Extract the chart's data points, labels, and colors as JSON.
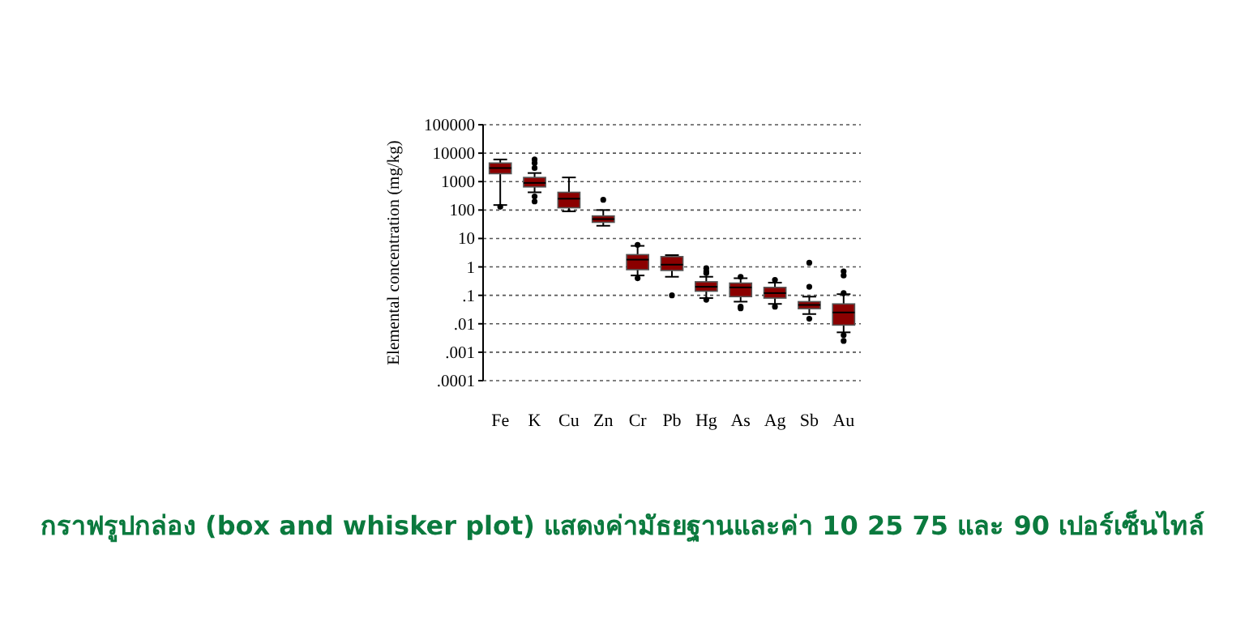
{
  "chart_data": {
    "type": "box",
    "title": "กราฟรูปกล่อง (box and whisker plot) แสดงค่ามัธยฐานและค่า 10 25 75 และ 90 เปอร์เซ็นไทล์",
    "ylabel": "Elemental concentration (mg/kg)",
    "categories": [
      "Fe",
      "K",
      "Cu",
      "Zn",
      "Cr",
      "Pb",
      "Hg",
      "As",
      "Ag",
      "Sb",
      "Au"
    ],
    "log": true,
    "ylim": [
      0.0001,
      100000
    ],
    "yticks": [
      {
        "value": 0.0001,
        "label": ".0001"
      },
      {
        "value": 0.001,
        "label": ".001"
      },
      {
        "value": 0.01,
        "label": ".01"
      },
      {
        "value": 0.1,
        "label": ".1"
      },
      1,
      10,
      100,
      1000,
      10000,
      100000
    ],
    "grid": "y",
    "color": "#8b0000",
    "boxes": [
      {
        "low": 150,
        "q1": 1900,
        "median": 3000,
        "q3": 4500,
        "high": 6000,
        "outliers": [
          130
        ]
      },
      {
        "low": 420,
        "q1": 650,
        "median": 900,
        "q3": 1400,
        "high": 2000,
        "outliers": [
          6000,
          4500,
          3000,
          300,
          200
        ]
      },
      {
        "low": 90,
        "q1": 120,
        "median": 250,
        "q3": 420,
        "high": 1400
      },
      {
        "low": 28,
        "q1": 37,
        "median": 48,
        "q3": 62,
        "high": 100,
        "outliers": [
          230
        ]
      },
      {
        "low": 0.5,
        "q1": 0.8,
        "median": 1.8,
        "q3": 2.7,
        "high": 5.5,
        "outliers": [
          6,
          0.4
        ]
      },
      {
        "low": 0.45,
        "q1": 0.75,
        "median": 1.2,
        "q3": 2.3,
        "high": 2.6,
        "outliers": [
          0.1
        ]
      },
      {
        "low": 0.08,
        "q1": 0.14,
        "median": 0.2,
        "q3": 0.3,
        "high": 0.45,
        "outliers": [
          0.9,
          0.7,
          0.6,
          0.07
        ]
      },
      {
        "low": 0.06,
        "q1": 0.09,
        "median": 0.19,
        "q3": 0.27,
        "high": 0.4,
        "outliers": [
          0.45,
          0.04,
          0.035
        ]
      },
      {
        "low": 0.05,
        "q1": 0.08,
        "median": 0.12,
        "q3": 0.19,
        "high": 0.28,
        "outliers": [
          0.35,
          0.04
        ]
      },
      {
        "low": 0.022,
        "q1": 0.034,
        "median": 0.046,
        "q3": 0.06,
        "high": 0.09,
        "outliers": [
          1.4,
          0.2,
          0.015
        ]
      },
      {
        "low": 0.005,
        "q1": 0.009,
        "median": 0.025,
        "q3": 0.05,
        "high": 0.11,
        "outliers": [
          0.7,
          0.5,
          0.12,
          0.004,
          0.0025
        ]
      }
    ]
  }
}
